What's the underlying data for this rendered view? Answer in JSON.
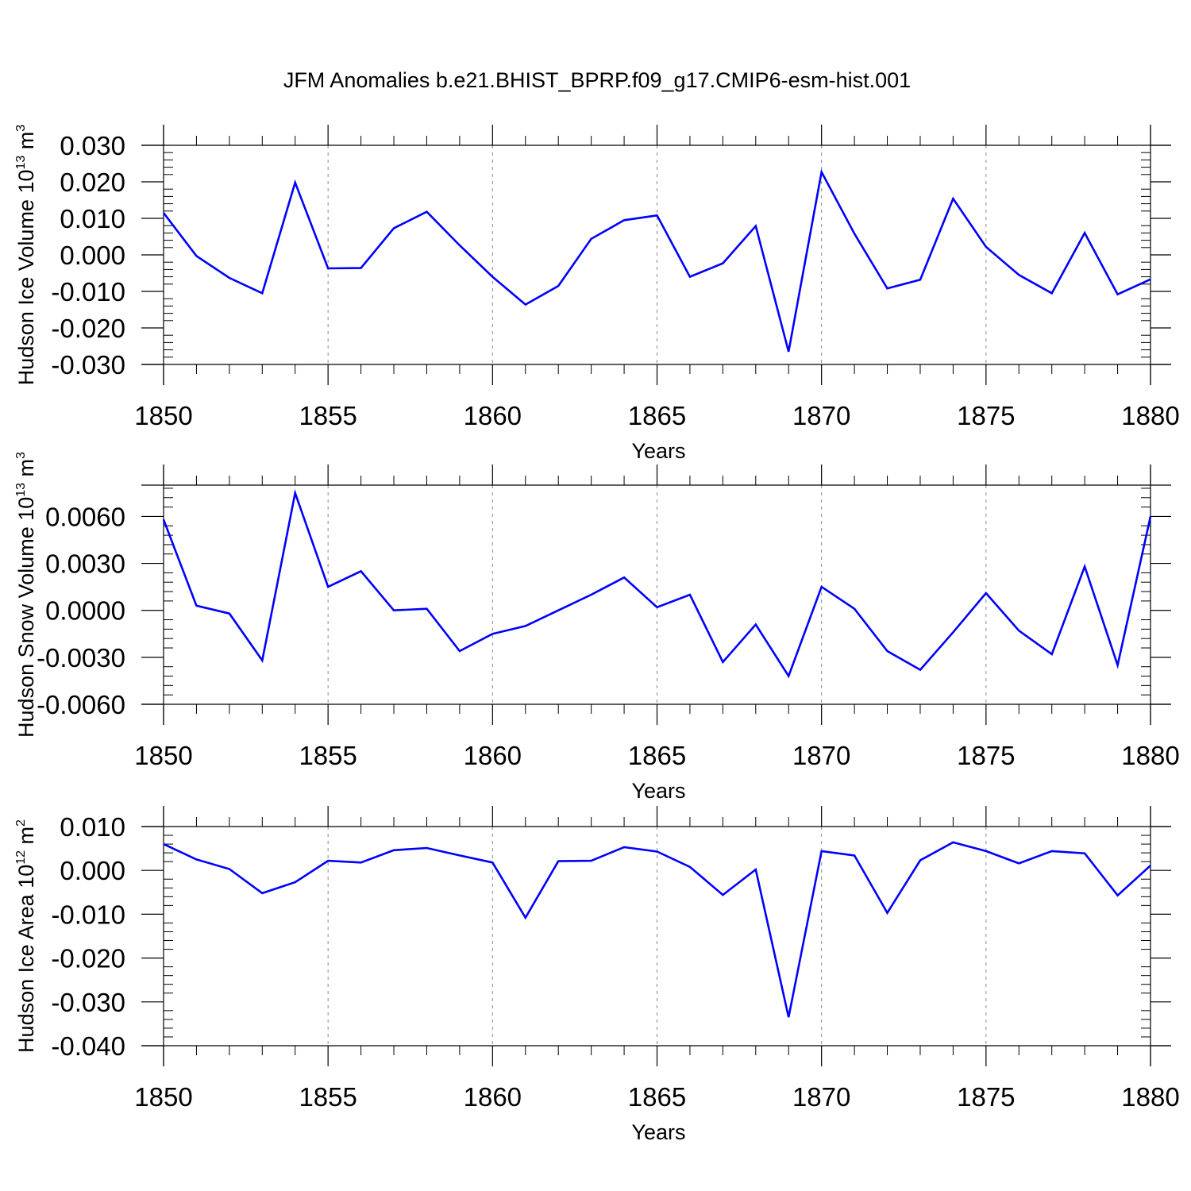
{
  "figure": {
    "title": "JFM Anomalies b.e21.BHIST_BPRP.f09_g17.CMIP6-esm-hist.001",
    "line_color": "#0000ff",
    "grid_color": "#888888"
  },
  "chart_data": [
    {
      "type": "line",
      "title": "",
      "xlabel": "Years",
      "ylabel": "Hudson Ice Volume",
      "ylabel_unit_base": "10",
      "ylabel_unit_exp": "13",
      "ylabel_unit_rest": " m",
      "ylabel_unit_rest_exp": "3",
      "xlim": [
        1850,
        1880
      ],
      "ylim": [
        -0.03,
        0.03
      ],
      "xticks": [
        1850,
        1855,
        1860,
        1865,
        1870,
        1875,
        1880
      ],
      "yticks": [
        -0.03,
        -0.02,
        -0.01,
        0.0,
        0.01,
        0.02,
        0.03
      ],
      "ytick_labels": [
        "-0.030",
        "-0.020",
        "-0.010",
        "0.000",
        "0.010",
        "0.020",
        "0.030"
      ],
      "grid": "vertical dashed at major x ticks",
      "series": [
        {
          "x": [
            1850,
            1851,
            1852,
            1853,
            1854,
            1855,
            1856,
            1857,
            1858,
            1859,
            1860,
            1861,
            1862,
            1863,
            1864,
            1865,
            1866,
            1867,
            1868,
            1869,
            1870,
            1871,
            1872,
            1873,
            1874,
            1875,
            1876,
            1877,
            1878,
            1879,
            1880
          ],
          "values": [
            0.0115,
            -0.0003,
            -0.0063,
            -0.0105,
            0.0198,
            -0.0037,
            -0.0036,
            0.0073,
            0.0118,
            0.0026,
            -0.006,
            -0.0136,
            -0.0085,
            0.0044,
            0.0095,
            0.0108,
            -0.006,
            -0.0023,
            0.0079,
            -0.0265,
            0.0227,
            0.0058,
            -0.0092,
            -0.0068,
            0.0154,
            0.0022,
            -0.0055,
            -0.0105,
            0.006,
            -0.0108,
            -0.0067
          ]
        }
      ]
    },
    {
      "type": "line",
      "title": "",
      "xlabel": "Years",
      "ylabel": "Hudson Snow Volume",
      "ylabel_unit_base": "10",
      "ylabel_unit_exp": "13",
      "ylabel_unit_rest": " m",
      "ylabel_unit_rest_exp": "3",
      "xlim": [
        1850,
        1880
      ],
      "ylim": [
        -0.006,
        0.008
      ],
      "xticks": [
        1850,
        1855,
        1860,
        1865,
        1870,
        1875,
        1880
      ],
      "yticks": [
        -0.006,
        -0.003,
        0.0,
        0.003,
        0.006
      ],
      "ytick_labels": [
        "-0.0060",
        "-0.0030",
        "0.0000",
        "0.0030",
        "0.0060"
      ],
      "grid": "vertical dashed at major x ticks",
      "series": [
        {
          "x": [
            1850,
            1851,
            1852,
            1853,
            1854,
            1855,
            1856,
            1857,
            1858,
            1859,
            1860,
            1861,
            1862,
            1863,
            1864,
            1865,
            1866,
            1867,
            1868,
            1869,
            1870,
            1871,
            1872,
            1873,
            1874,
            1875,
            1876,
            1877,
            1878,
            1879,
            1880
          ],
          "values": [
            0.0058,
            0.0003,
            -0.0002,
            -0.0032,
            0.0075,
            0.0015,
            0.0025,
            -0.0,
            0.0001,
            -0.0026,
            -0.0015,
            -0.001,
            0.0,
            0.001,
            0.0021,
            0.0002,
            0.001,
            -0.0033,
            -0.0009,
            -0.0042,
            0.0015,
            0.0001,
            -0.0026,
            -0.0038,
            -0.0014,
            0.0011,
            -0.0013,
            -0.0028,
            0.0028,
            -0.0035,
            0.006
          ]
        }
      ]
    },
    {
      "type": "line",
      "title": "",
      "xlabel": "Years",
      "ylabel": "Hudson Ice Area",
      "ylabel_unit_base": "10",
      "ylabel_unit_exp": "12",
      "ylabel_unit_rest": " m",
      "ylabel_unit_rest_exp": "2",
      "xlim": [
        1850,
        1880
      ],
      "ylim": [
        -0.04,
        0.01
      ],
      "xticks": [
        1850,
        1855,
        1860,
        1865,
        1870,
        1875,
        1880
      ],
      "yticks": [
        -0.04,
        -0.03,
        -0.02,
        -0.01,
        0.0,
        0.01
      ],
      "ytick_labels": [
        "-0.040",
        "-0.030",
        "-0.020",
        "-0.010",
        "0.000",
        "0.010"
      ],
      "grid": "vertical dashed at major x ticks",
      "series": [
        {
          "x": [
            1850,
            1851,
            1852,
            1853,
            1854,
            1855,
            1856,
            1857,
            1858,
            1859,
            1860,
            1861,
            1862,
            1863,
            1864,
            1865,
            1866,
            1867,
            1868,
            1869,
            1870,
            1871,
            1872,
            1873,
            1874,
            1875,
            1876,
            1877,
            1878,
            1879,
            1880
          ],
          "values": [
            0.006,
            0.0025,
            0.0003,
            -0.0052,
            -0.0027,
            0.0022,
            0.0018,
            0.0046,
            0.0051,
            0.0034,
            0.0018,
            -0.0108,
            0.0021,
            0.0022,
            0.0053,
            0.0043,
            0.0008,
            -0.0056,
            0.0002,
            -0.0335,
            0.0044,
            0.0034,
            -0.0097,
            0.0023,
            0.0064,
            0.0044,
            0.0016,
            0.0044,
            0.0039,
            -0.0057,
            0.0011
          ]
        }
      ]
    }
  ]
}
